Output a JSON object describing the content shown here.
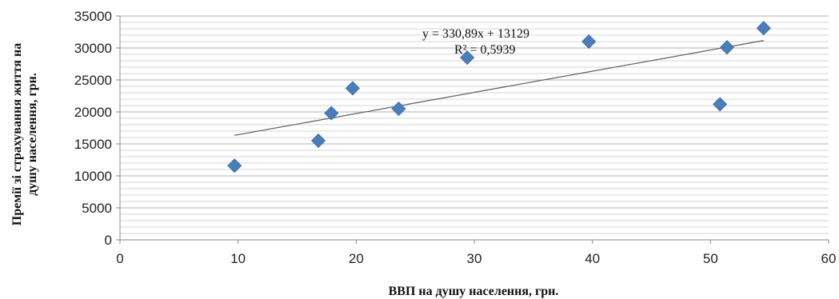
{
  "chart_data": {
    "type": "scatter",
    "title": "",
    "xlabel": "ВВП на душу населення, грн.",
    "ylabel_lines": [
      "Премії зі страхування життя на",
      "душу населення, грн."
    ],
    "xlim": [
      0,
      60
    ],
    "ylim": [
      0,
      35000
    ],
    "x_ticks": [
      0,
      10,
      20,
      30,
      40,
      50,
      60
    ],
    "y_ticks": [
      0,
      5000,
      10000,
      15000,
      20000,
      25000,
      30000,
      35000
    ],
    "grid": "horizontal",
    "marker": "diamond",
    "point_color": "#4a7ebb",
    "trendline_color": "#666666",
    "points": [
      {
        "x": 9.7,
        "y": 11600
      },
      {
        "x": 16.8,
        "y": 15500
      },
      {
        "x": 17.9,
        "y": 19800
      },
      {
        "x": 19.7,
        "y": 23700
      },
      {
        "x": 23.6,
        "y": 20500
      },
      {
        "x": 29.4,
        "y": 28500
      },
      {
        "x": 39.7,
        "y": 31000
      },
      {
        "x": 50.8,
        "y": 21200
      },
      {
        "x": 51.4,
        "y": 30100
      },
      {
        "x": 54.5,
        "y": 33100
      }
    ],
    "trendline": {
      "slope": 330.89,
      "intercept": 13129,
      "x_range": [
        9.7,
        54.5
      ],
      "equation": "y = 330,89x + 13129",
      "r_squared": "R² = 0,5939"
    }
  }
}
